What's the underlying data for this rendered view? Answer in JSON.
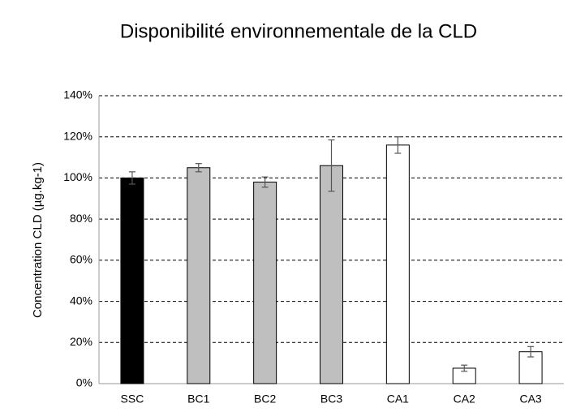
{
  "chart_data": {
    "type": "bar",
    "title": "Disponibilité environnementale de la CLD",
    "ylabel": "Concentration CLD (µg.kg-1)",
    "categories": [
      "SSC",
      "BC1",
      "BC2",
      "BC3",
      "CA1",
      "CA2",
      "CA3"
    ],
    "values": [
      100,
      105,
      98,
      106,
      116,
      7.5,
      15.5
    ],
    "errors": [
      3,
      2,
      2.5,
      12.5,
      4,
      1.5,
      2.5
    ],
    "colors": [
      "#000000",
      "#bfbfbf",
      "#bfbfbf",
      "#bfbfbf",
      "#ffffff",
      "#ffffff",
      "#ffffff"
    ],
    "ylim": [
      0,
      140
    ],
    "yticks": [
      {
        "value": 0,
        "label": "0%"
      },
      {
        "value": 20,
        "label": "20%"
      },
      {
        "value": 40,
        "label": "40%"
      },
      {
        "value": 60,
        "label": "60%"
      },
      {
        "value": 80,
        "label": "80%"
      },
      {
        "value": 100,
        "label": "100%"
      },
      {
        "value": 120,
        "label": "120%"
      },
      {
        "value": 140,
        "label": "140%"
      }
    ],
    "grid": true
  }
}
